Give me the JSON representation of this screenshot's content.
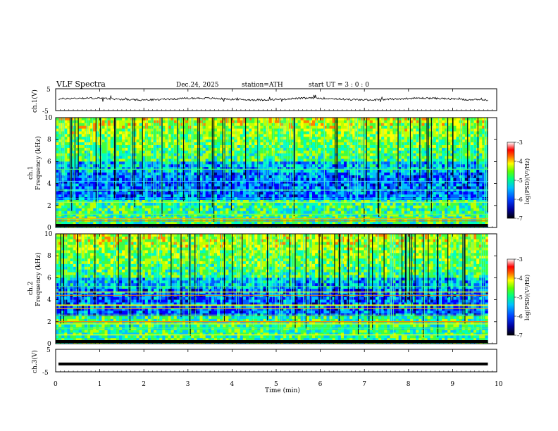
{
  "header": {
    "title": "VLF  Spectra",
    "date": "Dec.24, 2025",
    "station": "station=ATH",
    "start": "start  UT  =    3  : 0  : 0"
  },
  "chart_data": {
    "type": "heatmap",
    "x_axis": {
      "label": "Time  (min)",
      "range": [
        0,
        10
      ],
      "ticks": [
        "0",
        "1",
        "2",
        "3",
        "4",
        "5",
        "6",
        "7",
        "8",
        "9",
        "10"
      ],
      "data_end": 9.8
    },
    "panels": [
      {
        "id": "ch1-waveform",
        "type": "line",
        "ylabel": "ch.1(V)",
        "ylim": [
          -5,
          5
        ],
        "yticks": [
          "5",
          "-5"
        ],
        "trace_level": 0.3,
        "trace_amplitude": 0.8
      },
      {
        "id": "ch1-spectrogram",
        "type": "heatmap",
        "ylabel_top": "ch.1",
        "ylabel": "Frequency  (kHz)",
        "ylim": [
          0,
          10
        ],
        "yticks": [
          "0",
          "2",
          "4",
          "6",
          "8",
          "10"
        ],
        "colorbar": {
          "label": "log(PSD)(V²/Hz)",
          "range": [
            -7,
            -3
          ],
          "ticks": [
            "-3",
            "-4",
            "-5",
            "-6",
            "-7"
          ]
        }
      },
      {
        "id": "ch2-spectrogram",
        "type": "heatmap",
        "ylabel_top": "ch.2",
        "ylabel": "Frequency  (kHz)",
        "ylim": [
          0,
          10
        ],
        "yticks": [
          "0",
          "2",
          "4",
          "6",
          "8",
          "10"
        ],
        "colorbar": {
          "label": "log(PSD)(V²/Hz)",
          "range": [
            -7,
            -3
          ],
          "ticks": [
            "-3",
            "-4",
            "-5",
            "-6",
            "-7"
          ]
        }
      },
      {
        "id": "ch3-waveform",
        "type": "line",
        "ylabel": "ch.3(V)",
        "ylim": [
          -5,
          5
        ],
        "yticks": [
          "5",
          "-5"
        ],
        "trace_level": -1.5
      }
    ],
    "colormap": [
      "#000080",
      "#0000ff",
      "#0060ff",
      "#00c0ff",
      "#00ffc0",
      "#40ff40",
      "#c0ff00",
      "#ffff00",
      "#ff8000",
      "#ff0000",
      "#ffffff"
    ]
  }
}
